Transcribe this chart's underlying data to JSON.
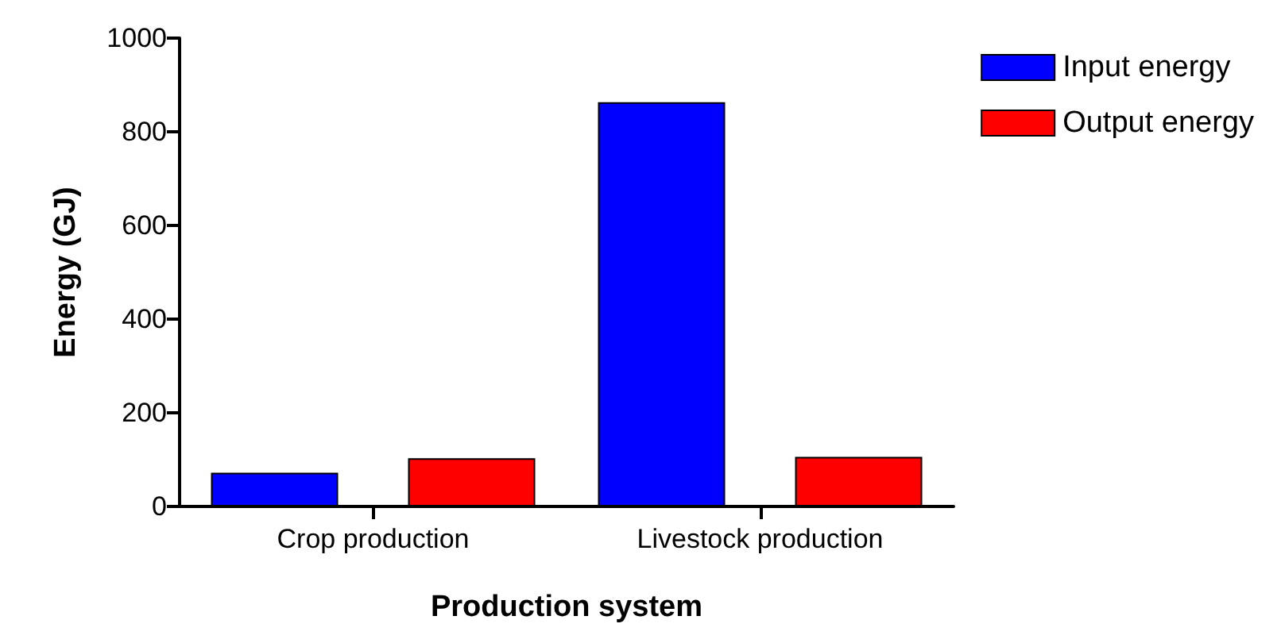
{
  "chart_data": {
    "type": "bar",
    "xlabel": "Production system",
    "ylabel": "Energy (GJ)",
    "categories": [
      "Crop production",
      "Livestock production"
    ],
    "series": [
      {
        "name": "Input energy",
        "color": "#0000ff",
        "values": [
          72,
          863
        ]
      },
      {
        "name": "Output energy",
        "color": "#ff0000",
        "values": [
          103,
          106
        ]
      }
    ],
    "ylim": [
      0,
      1000
    ],
    "yticks": [
      0,
      200,
      400,
      600,
      800,
      1000
    ],
    "grid": false,
    "legend": "top right"
  }
}
